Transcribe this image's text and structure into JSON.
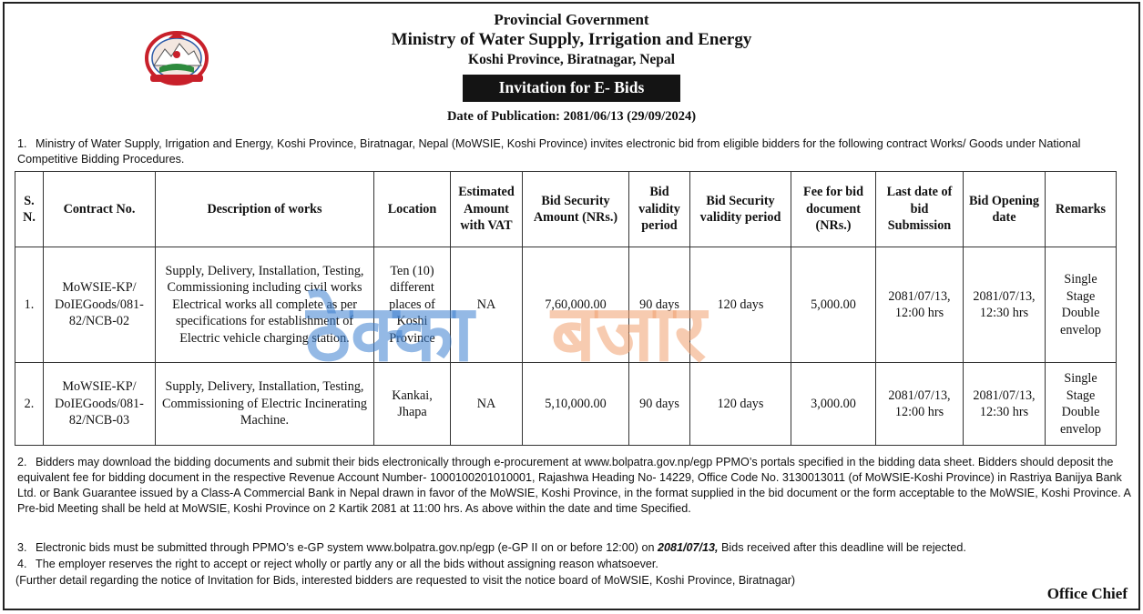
{
  "header": {
    "line1": "Provincial Government",
    "line2": "Ministry of Water Supply, Irrigation and Energy",
    "line3": "Koshi Province, Biratnagar, Nepal",
    "banner": "Invitation for E- Bids",
    "publication": "Date of Publication: 2081/06/13 (29/09/2024)"
  },
  "para1": {
    "num": "1.",
    "text": "Ministry of Water Supply, Irrigation and Energy, Koshi Province, Biratnagar, Nepal (MoWSIE, Koshi Province) invites electronic bid from eligible bidders for the following contract Works/ Goods under National Competitive Bidding Procedures."
  },
  "table": {
    "headers": {
      "sn": "S. N.",
      "contract": "Contract No.",
      "desc": "Description of works",
      "location": "Location",
      "estimate": "Estimated Amount with VAT",
      "security": "Bid Security Amount (NRs.)",
      "validity": "Bid validity period",
      "sec_validity": "Bid Security validity period",
      "fee": "Fee for bid document (NRs.)",
      "last_date": "Last date of bid Submission",
      "opening": "Bid Opening date",
      "remarks": "Remarks"
    },
    "rows": [
      {
        "sn": "1.",
        "contract": "MoWSIE-KP/ DoIEGoods/081-82/NCB-02",
        "desc": "Supply, Delivery, Installation, Testing, Commissioning including civil works Electrical works all complete as per specifications for establishment of Electric vehicle charging station.",
        "location": "Ten (10) different places of Koshi Province",
        "estimate": "NA",
        "security": "7,60,000.00",
        "validity": "90 days",
        "sec_validity": "120 days",
        "fee": "5,000.00",
        "last_date": "2081/07/13, 12:00 hrs",
        "opening": "2081/07/13, 12:30 hrs",
        "remarks": "Single Stage Double envelop"
      },
      {
        "sn": "2.",
        "contract": "MoWSIE-KP/ DoIEGoods/081-82/NCB-03",
        "desc": "Supply, Delivery, Installation, Testing, Commissioning of Electric Incinerating Machine.",
        "location": "Kankai, Jhapa",
        "estimate": "NA",
        "security": "5,10,000.00",
        "validity": "90 days",
        "sec_validity": "120 days",
        "fee": "3,000.00",
        "last_date": "2081/07/13, 12:00 hrs",
        "opening": "2081/07/13, 12:30 hrs",
        "remarks": "Single Stage Double envelop"
      }
    ]
  },
  "para2": {
    "num": "2.",
    "text": "Bidders may download the bidding documents and submit their bids electronically through e-procurement at www.bolpatra.gov.np/egp PPMO’s portals specified in the bidding data sheet. Bidders should deposit the equivalent fee for bidding document in the respective Revenue Account Number- 1000100201010001, Rajashwa Heading No- 14229, Office Code No. 3130013011 (of MoWSIE-Koshi Province) in Rastriya Banijya Bank Ltd. or Bank Guarantee issued by a Class-A Commercial Bank in Nepal drawn in favor of the MoWSIE, Koshi Province, in the format supplied in the bid document or the form acceptable to the MoWSIE, Koshi Province. A Pre-bid Meeting shall be held at MoWSIE, Koshi Province on 2 Kartik 2081 at 11:00 hrs. As above within the date and time Specified."
  },
  "para3": {
    "num": "3.",
    "pre": "Electronic bids must be submitted through PPMO’s e-GP system www.bolpatra.gov.np/egp (e-GP II on or before 12:00) on ",
    "date": "2081/07/13,",
    "post": " Bids received after this deadline will be rejected."
  },
  "para4": {
    "num": "4.",
    "text": "The employer reserves the right to accept or reject wholly or partly any or all the bids without assigning reason whatsoever."
  },
  "note": "(Further detail regarding the notice of Invitation for Bids, interested bidders are requested to visit the notice board of MoWSIE, Koshi Province, Biratnagar)",
  "signature": "Office Chief",
  "watermark": {
    "part1": "ठेक्का",
    "part2": "बजार",
    "color1": "#3d7fd0",
    "color2": "#f0a070"
  },
  "logo": {
    "icon": "nepal-emblem-icon",
    "color": "#c8202a"
  }
}
